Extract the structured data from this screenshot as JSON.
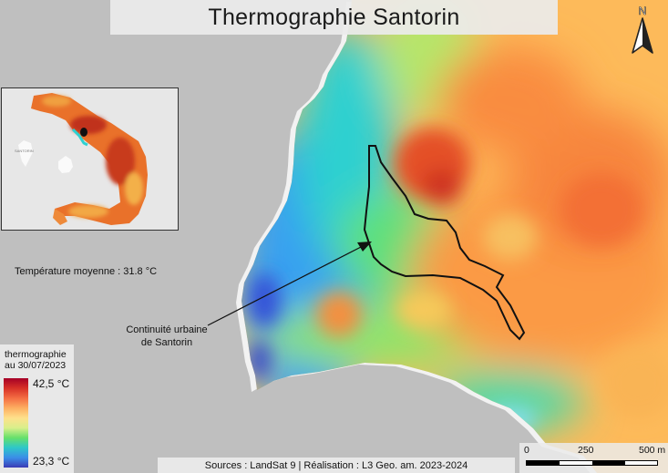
{
  "title": "Thermographie Santorin",
  "north_label": "N",
  "mean_temperature": "Température moyenne : 31.8 °C",
  "annotation": {
    "line1": "Continuité urbaine",
    "line2": "de Santorin"
  },
  "legend": {
    "title_line1": "thermographie",
    "title_line2": "au 30/07/2023",
    "max_label": "42,5 °C",
    "min_label": "23,3 °C",
    "colors": [
      "#a50026",
      "#d73027",
      "#f46d43",
      "#fdae61",
      "#fee08b",
      "#d9ef8b",
      "#66e06a",
      "#2ec7c9",
      "#3b8ee8",
      "#3b3bb5"
    ]
  },
  "sources": "Sources : LandSat 9 | Réalisation : L3 Geo. am. 2023-2024",
  "scale": {
    "labels": [
      "0",
      "250",
      "500 m"
    ]
  },
  "inset": {
    "label": "SANTORIN"
  }
}
